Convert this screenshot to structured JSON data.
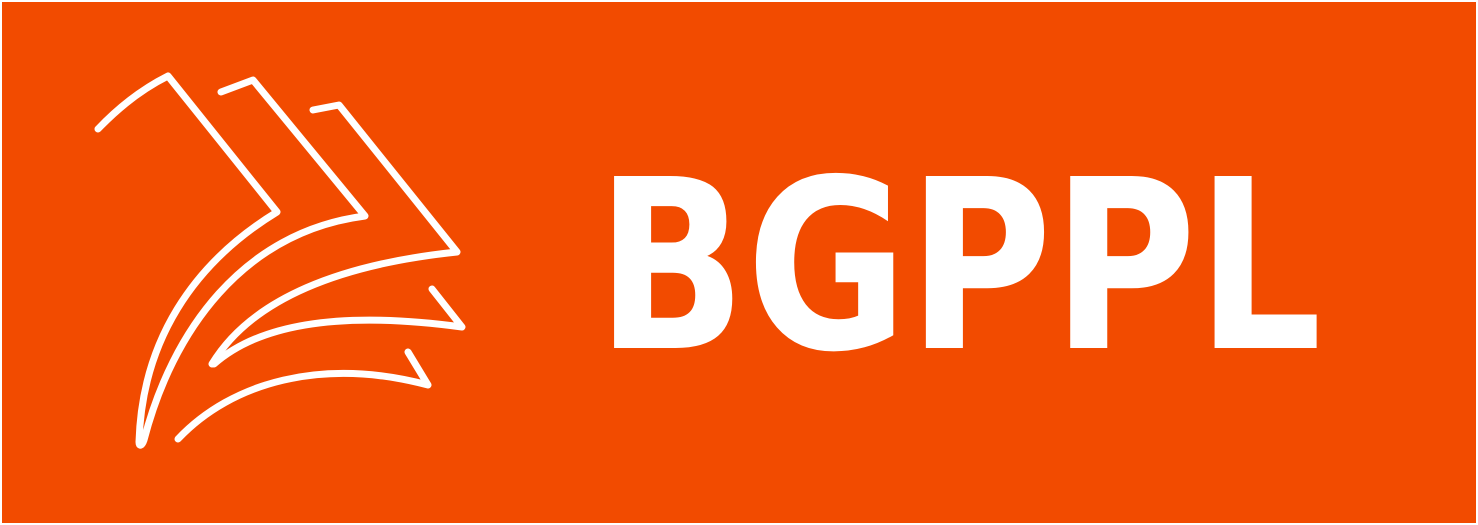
{
  "brand": {
    "name": "BGPPL",
    "background_color": "#f24b00",
    "foreground_color": "#ffffff",
    "mark_icon": "layered-pages-arrow-icon"
  }
}
